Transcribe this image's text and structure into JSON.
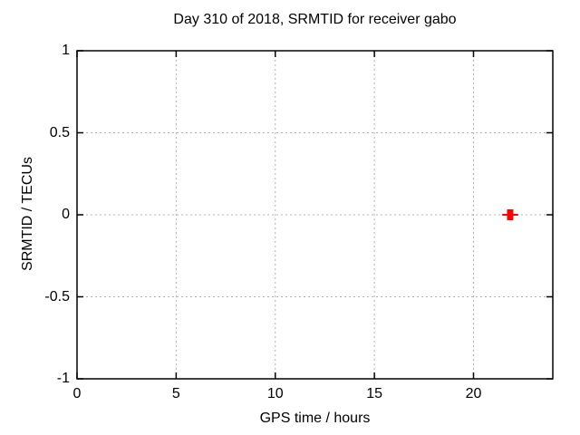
{
  "colors": {
    "background": "#ffffff",
    "border": "#000000",
    "grid": "#b0b0b0",
    "text": "#000000",
    "series1": "#ff0000"
  },
  "chart_data": {
    "type": "scatter",
    "title": "Day 310 of 2018, SRMTID for receiver gabo",
    "xlabel": "GPS time / hours",
    "ylabel": "SRMTID / TECUs",
    "xlim": [
      0,
      24
    ],
    "ylim": [
      -1,
      1
    ],
    "xticks": [
      0,
      5,
      10,
      15,
      20
    ],
    "yticks": [
      -1,
      -0.5,
      0,
      0.5,
      1
    ],
    "grid": true,
    "grid_style": "dotted",
    "legend": "none",
    "series": [
      {
        "name": "SRMTID",
        "color": "#ff0000",
        "marker": "filled-bar-with-x-error-whisker",
        "points": [
          {
            "x": 21.85,
            "y": 0.0,
            "xerr": 0.4,
            "yerr": 0.033
          }
        ]
      }
    ]
  }
}
